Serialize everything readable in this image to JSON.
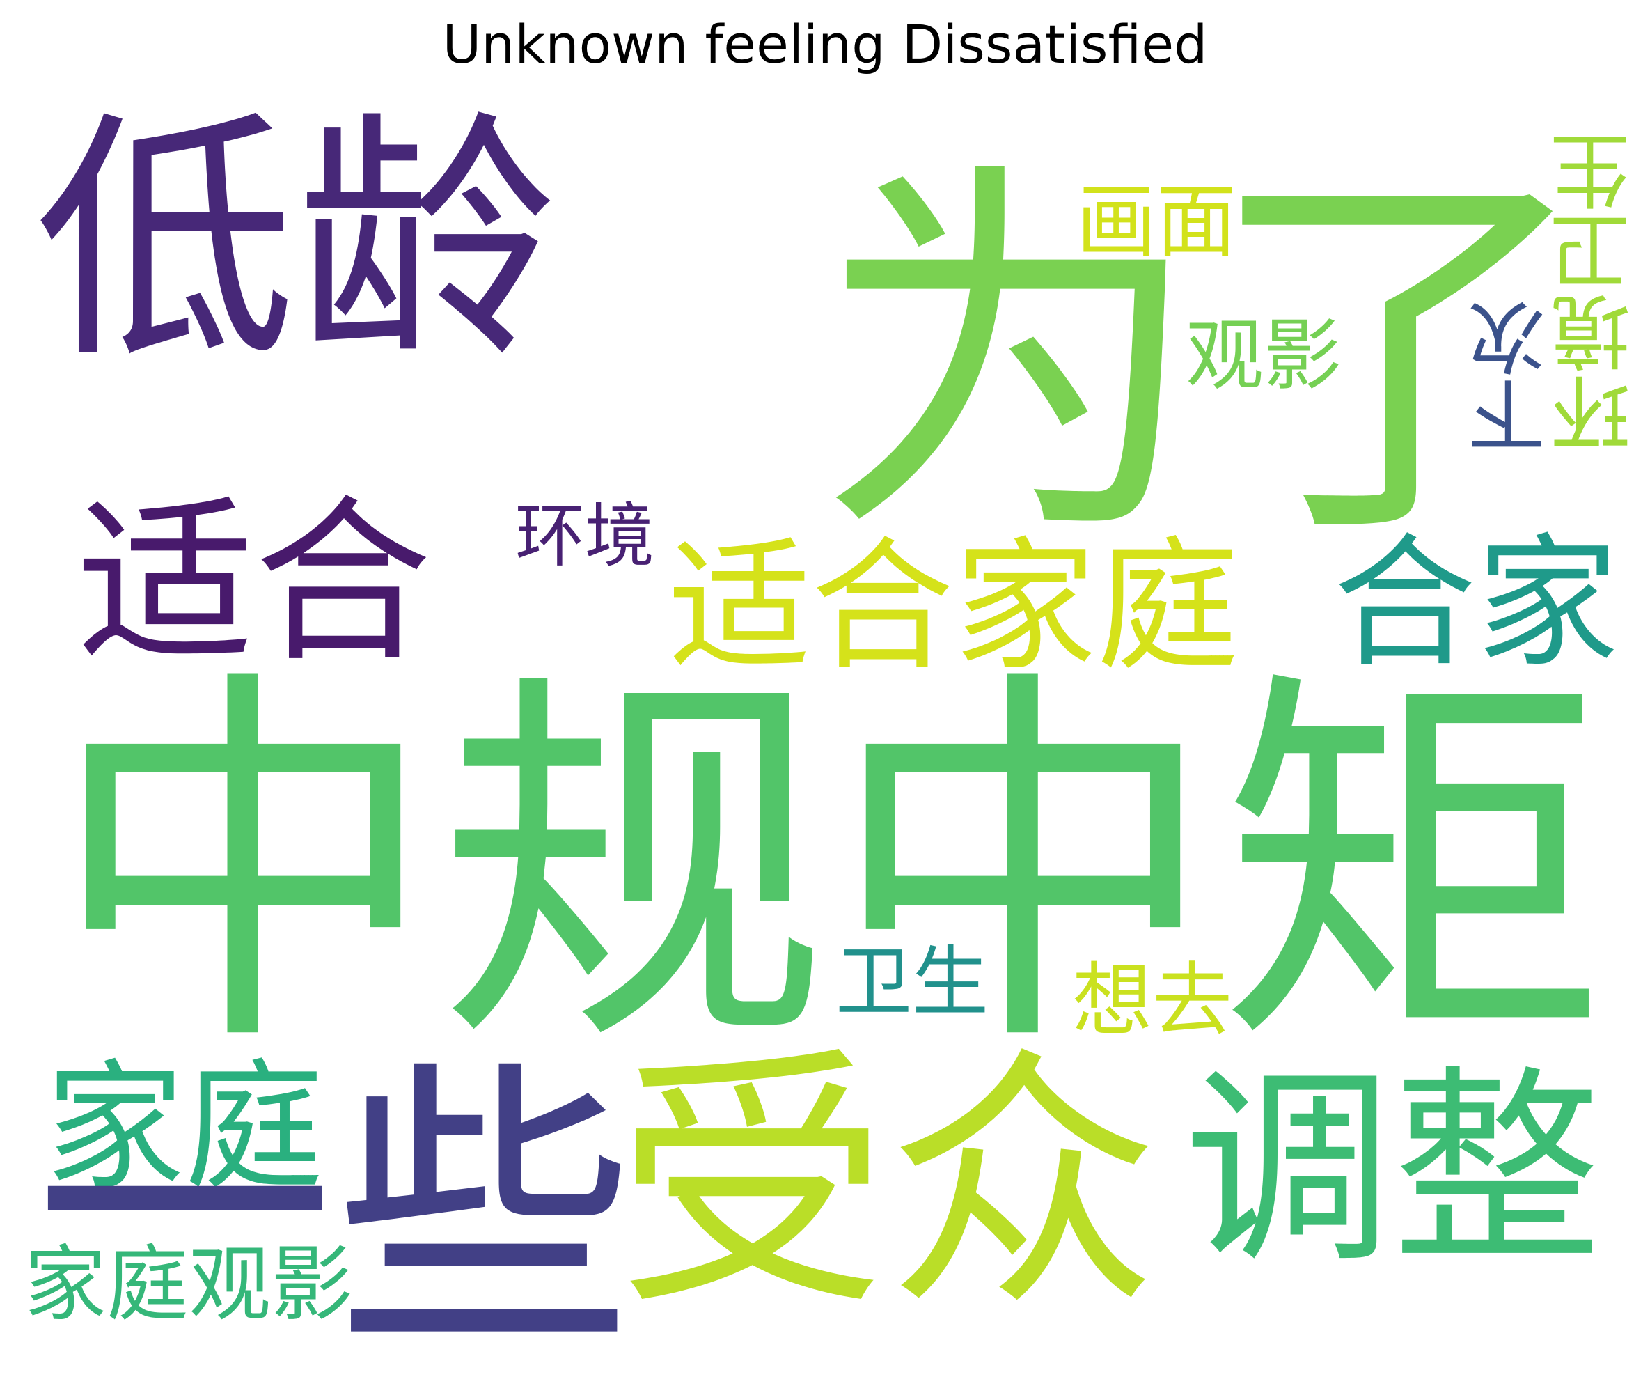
{
  "title": "Unknown feeling Dissatisfied",
  "words": [
    {
      "text": "低龄",
      "color": "#472878",
      "orientation": "horizontal"
    },
    {
      "text": "为了",
      "color": "#7ad151",
      "orientation": "horizontal"
    },
    {
      "text": "画面",
      "color": "#d2e21b",
      "orientation": "horizontal"
    },
    {
      "text": "观影",
      "color": "#75d054",
      "orientation": "horizontal"
    },
    {
      "text": "下次",
      "color": "#3b528b",
      "orientation": "vertical"
    },
    {
      "text": "环境卫生",
      "color": "#a0da39",
      "orientation": "vertical"
    },
    {
      "text": "适合",
      "color": "#481a6c",
      "orientation": "horizontal"
    },
    {
      "text": "环境",
      "color": "#482173",
      "orientation": "horizontal"
    },
    {
      "text": "适合家庭",
      "color": "#d5e21a",
      "orientation": "horizontal"
    },
    {
      "text": "合家",
      "color": "#1f9a8a",
      "orientation": "horizontal"
    },
    {
      "text": "中规中矩",
      "color": "#52c569",
      "orientation": "horizontal"
    },
    {
      "text": "卫生",
      "color": "#21918c",
      "orientation": "horizontal"
    },
    {
      "text": "想去",
      "color": "#cae11f",
      "orientation": "horizontal"
    },
    {
      "text": "家庭",
      "color": "#2ab07f",
      "orientation": "horizontal"
    },
    {
      "text": "一些",
      "color": "#424086",
      "orientation": "horizontal"
    },
    {
      "text": "受众",
      "color": "#bade28",
      "orientation": "horizontal"
    },
    {
      "text": "调整",
      "color": "#3dbc74",
      "orientation": "horizontal"
    },
    {
      "text": "家庭观影",
      "color": "#35b779",
      "orientation": "horizontal"
    }
  ]
}
